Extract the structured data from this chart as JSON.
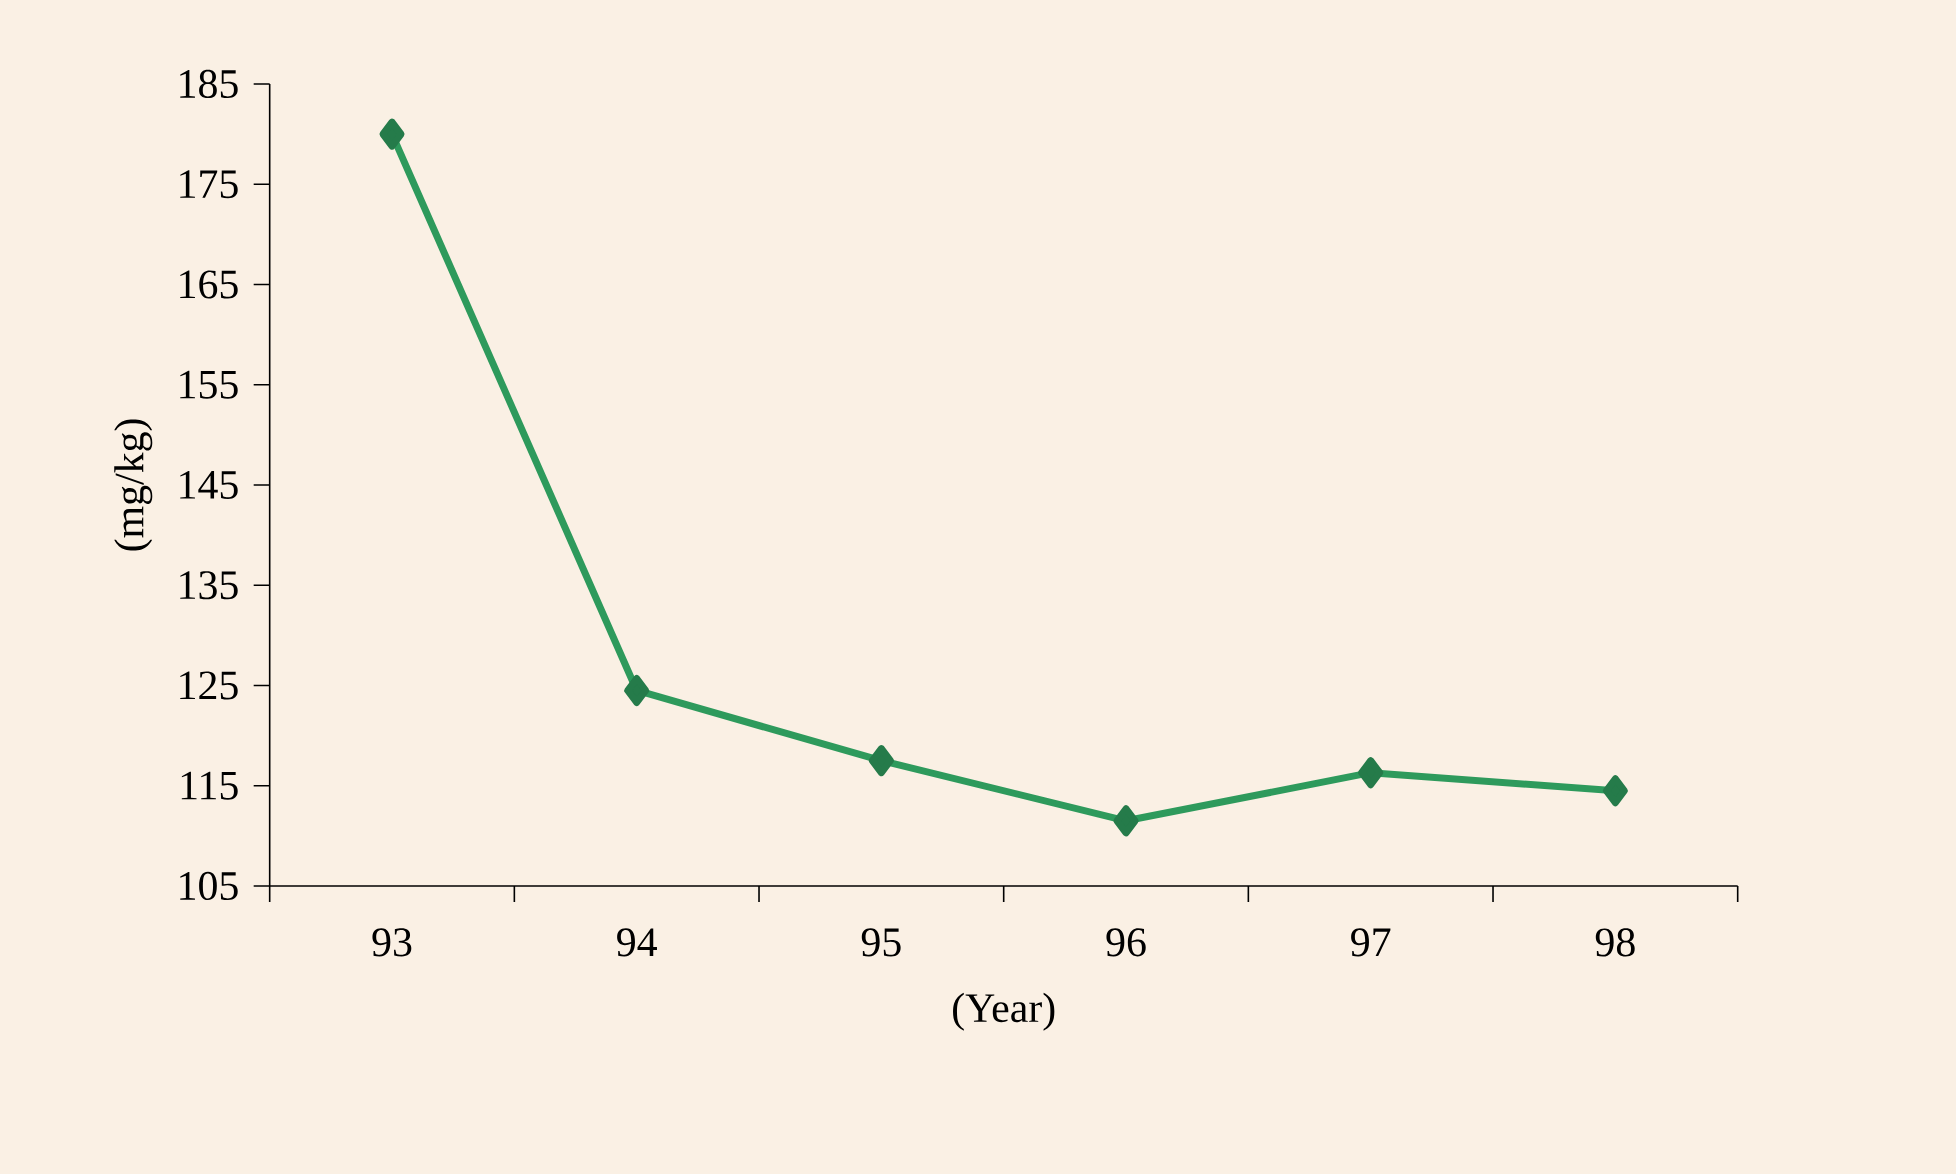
{
  "chart_data": {
    "type": "line",
    "xlabel": "(Year)",
    "ylabel": "(mg/kg)",
    "categories": [
      "93",
      "94",
      "95",
      "96",
      "97",
      "98"
    ],
    "series": [
      {
        "color": "#2e9a5c",
        "values": [
          180,
          124.5,
          117.5,
          111.5,
          116.3,
          114.5
        ]
      }
    ],
    "ylim": [
      105,
      185
    ],
    "yticks": [
      105,
      115,
      125,
      135,
      145,
      155,
      165,
      175,
      185
    ],
    "grid": false,
    "marker": "diamond",
    "line_style": "solid"
  }
}
